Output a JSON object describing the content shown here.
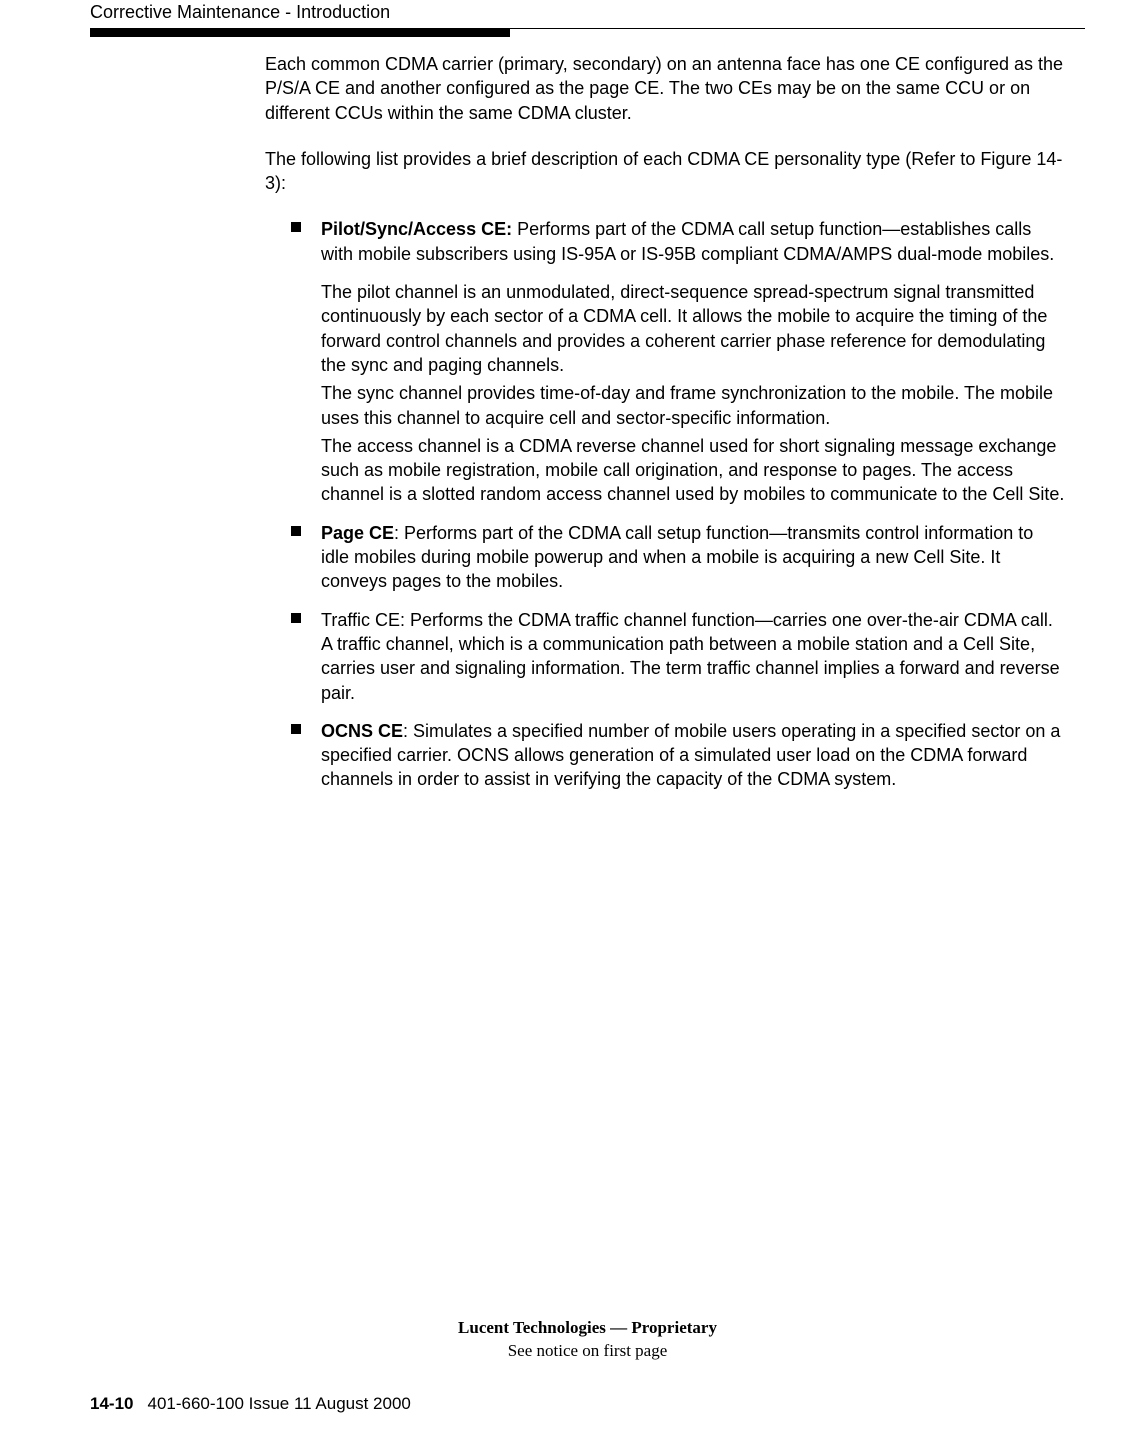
{
  "header": {
    "section_title": "Corrective Maintenance - Introduction"
  },
  "content": {
    "para1": "Each common CDMA carrier (primary, secondary) on an antenna face has one CE configured as the P/S/A CE and another configured as the page CE. The two CEs may be on the same CCU or on different CCUs within the same CDMA cluster.",
    "para2": "The following list provides a brief description of each CDMA CE personality type (Refer to Figure 14-3):",
    "items": [
      {
        "label": "Pilot/Sync/Access CE:",
        "text": " Performs part of the CDMA call setup function—establishes calls with mobile subscribers using IS-95A or IS-95B compliant CDMA/AMPS dual-mode mobiles.",
        "subs": [
          "The pilot channel is an unmodulated, direct-sequence spread-spectrum signal transmitted continuously by each sector of a CDMA cell. It allows the mobile to acquire the timing of the forward control channels and provides a coherent carrier phase reference for demodulating the sync and paging channels.",
          "The sync channel provides time-of-day and frame synchronization to the mobile. The mobile uses this channel to acquire cell and sector-specific information.",
          "The access channel is a CDMA reverse channel used for short signaling message exchange such as mobile registration, mobile call origination, and response to pages. The access channel is a slotted random access channel used by mobiles to communicate to the Cell Site."
        ]
      },
      {
        "label": "Page CE",
        "text": ": Performs part of the CDMA call setup function—transmits control information to idle mobiles during mobile powerup and when a mobile is acquiring a new Cell Site. It conveys pages to the mobiles.",
        "subs": []
      },
      {
        "label": "",
        "text": "Traffic CE: Performs the CDMA traffic channel function—carries one over-the-air CDMA call. A traffic channel, which is a communication path between a mobile station and a Cell Site, carries user and signaling information. The term traffic channel implies a forward and reverse pair.",
        "subs": []
      },
      {
        "label": "OCNS CE",
        "text": ": Simulates a specified number of mobile users operating in a specified sector on a specified carrier. OCNS allows generation of a simulated user load on the CDMA forward channels in order to assist in verifying the capacity of the CDMA system.",
        "subs": []
      }
    ]
  },
  "footer": {
    "line1": "Lucent Technologies — Proprietary",
    "line2": "See notice on first page",
    "page_num": "14-10",
    "doc_info": "401-660-100 Issue 11    August 2000"
  }
}
